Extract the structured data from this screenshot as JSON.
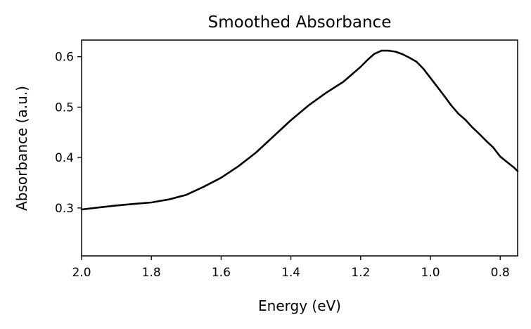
{
  "chart_data": {
    "type": "line",
    "title": "Smoothed Absorbance",
    "xlabel": "Energy (eV)",
    "ylabel": "Absorbance (a.u.)",
    "xlim": [
      2.0,
      0.75
    ],
    "ylim": [
      0.205,
      0.633
    ],
    "x_inverted": true,
    "grid": false,
    "xticks": [
      2.0,
      1.8,
      1.6,
      1.4,
      1.2,
      1.0,
      0.8
    ],
    "xtick_labels": [
      "2.0",
      "1.8",
      "1.6",
      "1.4",
      "1.2",
      "1.0",
      "0.8"
    ],
    "yticks": [
      0.3,
      0.4,
      0.5,
      0.6
    ],
    "ytick_labels": [
      "0.3",
      "0.4",
      "0.5",
      "0.6"
    ],
    "line_color": "#000000",
    "series": [
      {
        "x": [
          2.0,
          1.95,
          1.9,
          1.85,
          1.8,
          1.75,
          1.7,
          1.65,
          1.6,
          1.55,
          1.5,
          1.45,
          1.4,
          1.35,
          1.3,
          1.25,
          1.2,
          1.18,
          1.16,
          1.14,
          1.12,
          1.1,
          1.08,
          1.06,
          1.04,
          1.02,
          1.0,
          0.98,
          0.96,
          0.94,
          0.92,
          0.9,
          0.88,
          0.86,
          0.84,
          0.82,
          0.8,
          0.78,
          0.76,
          0.75
        ],
        "y": [
          0.297,
          0.301,
          0.305,
          0.308,
          0.311,
          0.317,
          0.326,
          0.342,
          0.36,
          0.383,
          0.41,
          0.442,
          0.474,
          0.503,
          0.528,
          0.55,
          0.58,
          0.594,
          0.606,
          0.612,
          0.612,
          0.61,
          0.605,
          0.598,
          0.59,
          0.576,
          0.558,
          0.54,
          0.522,
          0.503,
          0.487,
          0.475,
          0.46,
          0.447,
          0.433,
          0.42,
          0.402,
          0.391,
          0.38,
          0.373
        ]
      }
    ]
  }
}
